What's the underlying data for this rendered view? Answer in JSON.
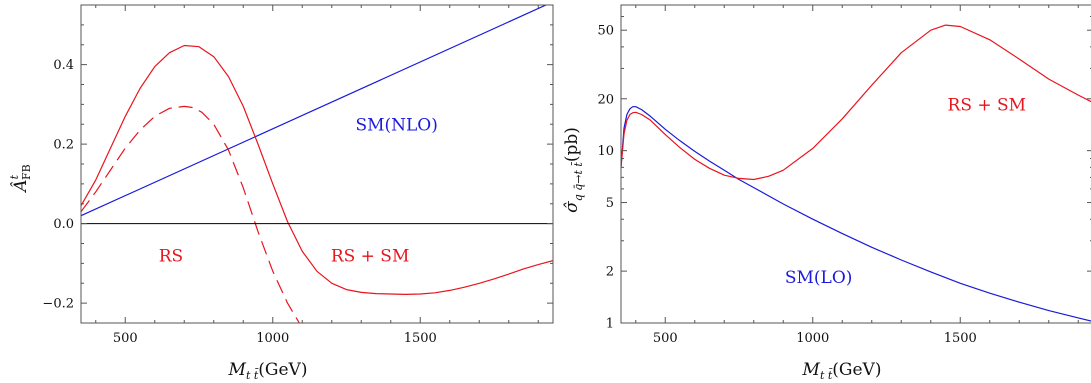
{
  "chart_data": [
    {
      "type": "line",
      "xlabel": "M_{t̄t}(GeV)",
      "xlabel_main": "M",
      "xlabel_sub": "t t̄",
      "xlabel_unit": "(GeV)",
      "ylabel": "Â^t_FB",
      "ylabel_main": "Â",
      "ylabel_sup": "t",
      "ylabel_sub": "FB",
      "xlim": [
        350,
        1950
      ],
      "ylim": [
        -0.25,
        0.55
      ],
      "xticks": [
        500,
        1000,
        1500
      ],
      "xtick_labels": [
        "500",
        "1000",
        "1500"
      ],
      "yticks": [
        -0.2,
        0.0,
        0.2,
        0.4
      ],
      "ytick_labels": [
        "−0.2",
        "0.0",
        "0.2",
        "0.4"
      ],
      "grid": false,
      "reference_line_y": 0.0,
      "series": [
        {
          "name": "SM(NLO)",
          "color": "#1a1adb",
          "dash": "solid",
          "x": [
            350,
            1950
          ],
          "y": [
            0.02,
            0.558
          ]
        },
        {
          "name": "RS + SM",
          "color": "#e8141e",
          "dash": "solid",
          "x": [
            350,
            400,
            450,
            500,
            550,
            600,
            650,
            700,
            750,
            800,
            850,
            900,
            950,
            1000,
            1050,
            1100,
            1150,
            1200,
            1250,
            1300,
            1350,
            1400,
            1450,
            1500,
            1550,
            1600,
            1650,
            1700,
            1750,
            1800,
            1850,
            1900,
            1950
          ],
          "y": [
            0.045,
            0.11,
            0.19,
            0.27,
            0.34,
            0.395,
            0.43,
            0.448,
            0.445,
            0.42,
            0.37,
            0.295,
            0.2,
            0.1,
            0.005,
            -0.07,
            -0.12,
            -0.15,
            -0.166,
            -0.173,
            -0.176,
            -0.177,
            -0.178,
            -0.177,
            -0.174,
            -0.168,
            -0.16,
            -0.15,
            -0.139,
            -0.127,
            -0.114,
            -0.103,
            -0.093
          ]
        },
        {
          "name": "RS",
          "color": "#e8141e",
          "dash": "dashed",
          "x": [
            350,
            400,
            450,
            500,
            550,
            600,
            650,
            700,
            730,
            760,
            800,
            850,
            900,
            950,
            1000,
            1050,
            1090
          ],
          "y": [
            0.03,
            0.08,
            0.135,
            0.19,
            0.235,
            0.27,
            0.29,
            0.295,
            0.292,
            0.28,
            0.25,
            0.185,
            0.09,
            -0.02,
            -0.12,
            -0.2,
            -0.25
          ]
        }
      ],
      "annotations": [
        {
          "text": "SM(NLO)",
          "color": "#1a1adb",
          "x": 1420,
          "y": 0.25
        },
        {
          "text": "RS",
          "color": "#e8141e",
          "x": 655,
          "y": -0.08
        },
        {
          "text": "RS + SM",
          "color": "#e8141e",
          "x": 1330,
          "y": -0.08
        }
      ]
    },
    {
      "type": "line",
      "xlabel": "M_{t̄t}(GeV)",
      "xlabel_main": "M",
      "xlabel_sub": "t t̄",
      "xlabel_unit": "(GeV)",
      "ylabel": "σ̂_{q q̄→t t̄}(pb)",
      "ylabel_main": "σ̂",
      "ylabel_sub": "q q̄→t t̄",
      "ylabel_unit": "(pb)",
      "yscale": "log",
      "xlim": [
        350,
        1950
      ],
      "ylim": [
        1,
        70
      ],
      "xticks": [
        500,
        1000,
        1500
      ],
      "xtick_labels": [
        "500",
        "1000",
        "1500"
      ],
      "yticks": [
        1,
        2,
        5,
        10,
        20,
        50
      ],
      "ytick_labels": [
        "1",
        "2",
        "5",
        "10",
        "20",
        "50"
      ],
      "grid": false,
      "series": [
        {
          "name": "SM(LO)",
          "color": "#1a1adb",
          "dash": "solid",
          "x": [
            350,
            360,
            370,
            380,
            390,
            400,
            420,
            450,
            500,
            550,
            600,
            650,
            700,
            750,
            800,
            900,
            1000,
            1100,
            1200,
            1300,
            1400,
            1500,
            1600,
            1700,
            1800,
            1900,
            1950
          ],
          "y": [
            8.0,
            13.5,
            16.2,
            17.5,
            18.0,
            18.0,
            17.3,
            15.8,
            13.3,
            11.4,
            9.9,
            8.7,
            7.7,
            6.8,
            6.1,
            4.9,
            4.0,
            3.3,
            2.75,
            2.32,
            1.98,
            1.7,
            1.49,
            1.32,
            1.18,
            1.07,
            1.02
          ]
        },
        {
          "name": "RS + SM",
          "color": "#e8141e",
          "dash": "solid",
          "x": [
            350,
            360,
            370,
            380,
            390,
            400,
            420,
            450,
            500,
            550,
            600,
            650,
            700,
            750,
            800,
            850,
            900,
            1000,
            1100,
            1200,
            1300,
            1400,
            1450,
            1500,
            1600,
            1700,
            1800,
            1900,
            1950
          ],
          "y": [
            8.0,
            12.5,
            15.0,
            16.2,
            16.6,
            16.7,
            16.2,
            15.0,
            12.4,
            10.4,
            8.9,
            7.9,
            7.2,
            6.9,
            6.8,
            7.1,
            7.7,
            10.3,
            15.3,
            24.0,
            37.0,
            50.0,
            53.5,
            52.5,
            44.0,
            34.0,
            26.0,
            21.0,
            19.0
          ]
        }
      ],
      "annotations": [
        {
          "text": "RS + SM",
          "color": "#e8141e",
          "x": 1590,
          "y": 18.5
        },
        {
          "text": "SM(LO)",
          "color": "#1a1adb",
          "x": 1020,
          "y": 1.85
        }
      ]
    }
  ]
}
